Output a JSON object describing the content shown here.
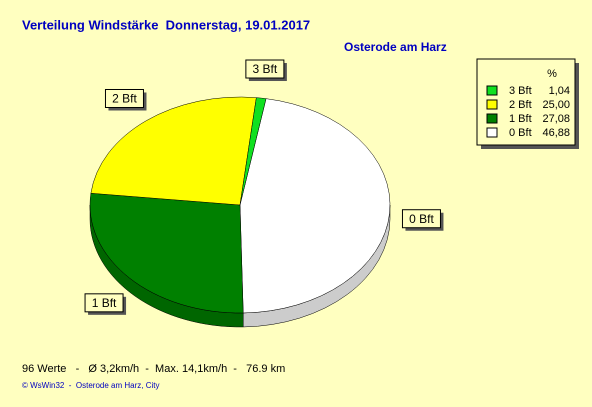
{
  "chart_data": {
    "type": "pie",
    "title": "Verteilung Windstärke  Donnerstag, 19.01.2017",
    "subtitle": "Osterode am Harz",
    "legend_title": "%",
    "categories": [
      "3 Bft",
      "2 Bft",
      "1 Bft",
      "0 Bft"
    ],
    "values": [
      1.04,
      25.0,
      27.08,
      46.88
    ],
    "value_labels": [
      "1,04",
      "25,00",
      "27,08",
      "46,88"
    ],
    "colors": [
      "#10e020",
      "#ffff00",
      "#008000",
      "#ffffff"
    ],
    "footer": [
      "96 Werte   -   Ø 3,2km/h  -  Max. 14,1km/h  -   76.9 km",
      "© WsWin32  -  Osterode am Harz, City"
    ]
  }
}
